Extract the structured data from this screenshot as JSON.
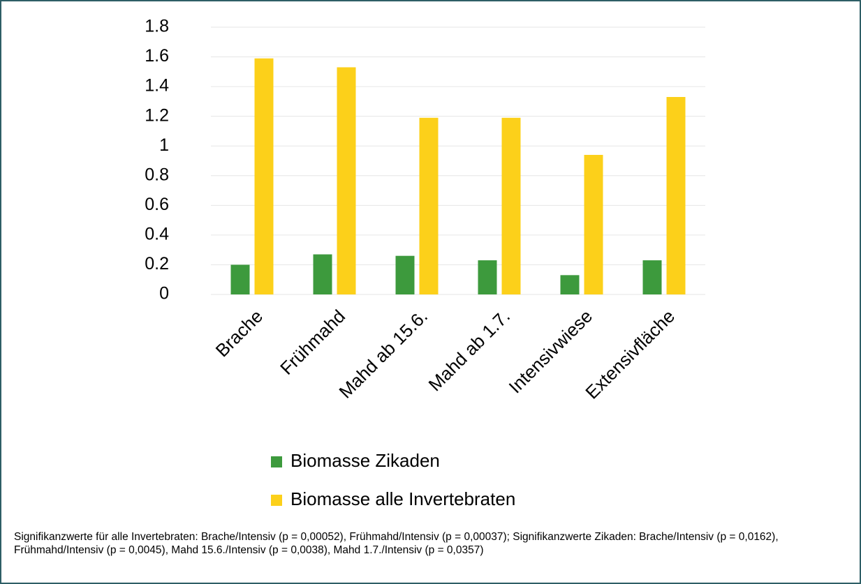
{
  "chart_data": {
    "type": "bar",
    "categories": [
      "Brache",
      "Frühmahd",
      "Mahd ab 15.6.",
      "Mahd ab 1.7.",
      "Intensivwiese",
      "Extensivfläche"
    ],
    "series": [
      {
        "name": "Biomasse Zikaden",
        "color": "#3d9a3d",
        "values": [
          0.2,
          0.27,
          0.26,
          0.23,
          0.13,
          0.23
        ]
      },
      {
        "name": "Biomasse alle Invertebraten",
        "color": "#fcd01a",
        "values": [
          1.59,
          1.53,
          1.19,
          1.19,
          0.94,
          1.33
        ]
      }
    ],
    "ylim": [
      0,
      1.8
    ],
    "yticks": [
      0,
      0.2,
      0.4,
      0.6,
      0.8,
      1,
      1.2,
      1.4,
      1.6,
      1.8
    ],
    "grid": true,
    "caption": "Signifikanzwerte für alle Invertebraten: Brache/Intensiv (p = 0,00052), Frühmahd/Intensiv (p = 0,00037);  Signifikanzwerte Zikaden: Brache/Intensiv (p = 0,0162), Frühmahd/Intensiv (p = 0,0045), Mahd 15.6./Intensiv (p = 0,0038), Mahd 1.7./Intensiv (p = 0,0357)"
  }
}
